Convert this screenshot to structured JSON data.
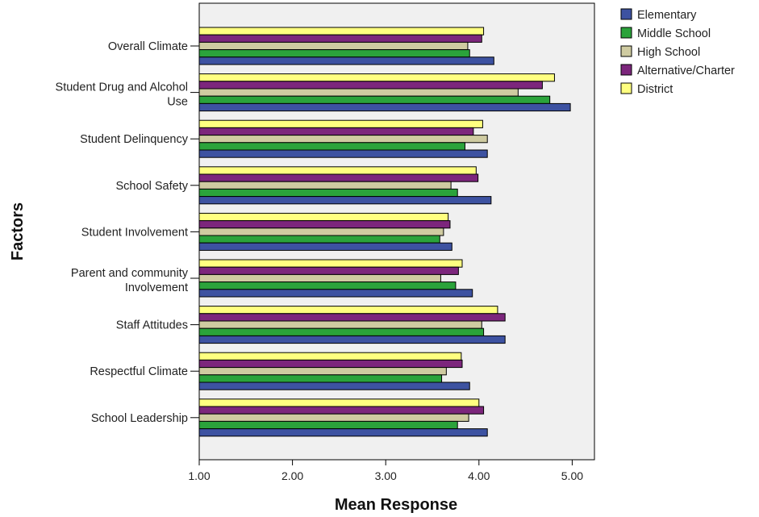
{
  "chart_data": {
    "type": "bar",
    "orientation": "horizontal",
    "xlabel": "Mean Response",
    "ylabel": "Factors",
    "xlim": [
      1,
      5.2
    ],
    "xticks": [
      "1.00",
      "2.00",
      "3.00",
      "4.00",
      "5.00"
    ],
    "xtick_values": [
      1,
      2,
      3,
      4,
      5
    ],
    "legend_position": "top-right outside plot",
    "categories": [
      [
        "Overall Climate"
      ],
      [
        "Student Drug and Alcohol",
        "Use"
      ],
      [
        "Student Delinquency"
      ],
      [
        "School Safety"
      ],
      [
        "Student Involvement"
      ],
      [
        "Parent and community",
        "Involvement"
      ],
      [
        "Staff Attitudes"
      ],
      [
        "Respectful Climate"
      ],
      [
        "School Leadership"
      ]
    ],
    "series": [
      {
        "name": "Elementary",
        "color": "#3d52a1",
        "values": [
          4.16,
          4.98,
          4.09,
          4.13,
          3.71,
          3.93,
          4.28,
          3.9,
          4.09
        ]
      },
      {
        "name": "Middle School",
        "color": "#2ba33b",
        "values": [
          3.9,
          4.76,
          3.85,
          3.77,
          3.58,
          3.75,
          4.05,
          3.6,
          3.77
        ]
      },
      {
        "name": "High School",
        "color": "#cfcba1",
        "values": [
          3.88,
          4.42,
          4.09,
          3.7,
          3.62,
          3.59,
          4.03,
          3.65,
          3.89
        ]
      },
      {
        "name": "Alternative/Charter",
        "color": "#7c267c",
        "values": [
          4.03,
          4.68,
          3.94,
          3.99,
          3.69,
          3.78,
          4.28,
          3.82,
          4.05
        ]
      },
      {
        "name": "District",
        "color": "#ffff80",
        "values": [
          4.05,
          4.81,
          4.04,
          3.97,
          3.67,
          3.82,
          4.2,
          3.81,
          4.0
        ]
      }
    ]
  }
}
